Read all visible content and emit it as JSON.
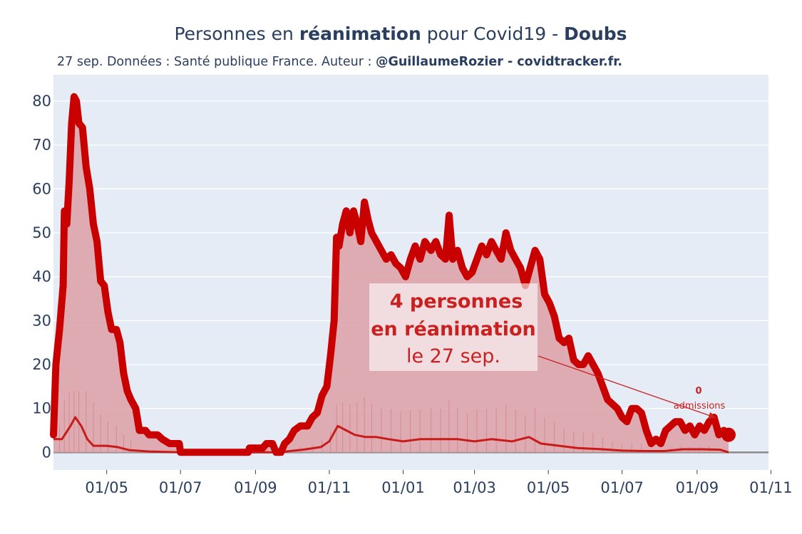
{
  "title": {
    "prefix": "Personnes en ",
    "bold": "réanimation",
    "middle": " pour Covid19 - ",
    "region": "Doubs"
  },
  "subtitle": {
    "text": "27 sep. Données : Santé publique France. Auteur : ",
    "bold": "@GuillaumeRozier - covidtracker.fr."
  },
  "annotation": {
    "line1": "4 personnes",
    "line2": "en réanimation",
    "line3": "le 27 sep."
  },
  "admissions_annotation": {
    "value": "0",
    "label": "admissions"
  },
  "colors": {
    "icu_line": "#c90000",
    "icu_fill": "#dba4aa",
    "admissions_line": "#c91a1a",
    "plot_bg": "#e5ecf6",
    "grid": "#ffffff",
    "text": "#2a3f5f",
    "annotation_text": "#c92020"
  },
  "chart_data": {
    "type": "area",
    "title": "Personnes en réanimation pour Covid19 - Doubs",
    "x_axis": {
      "ticks": [
        "01/05",
        "01/07",
        "01/09",
        "01/11",
        "01/01",
        "01/03",
        "01/05",
        "01/07",
        "01/09",
        "01/11"
      ],
      "tick_dates": [
        "2020-05-01",
        "2020-07-01",
        "2020-09-01",
        "2020-11-01",
        "2021-01-01",
        "2021-03-01",
        "2021-05-01",
        "2021-07-01",
        "2021-09-01",
        "2021-11-01"
      ],
      "range": [
        "2020-03-18",
        "2021-10-30"
      ]
    },
    "y_axis": {
      "ticks": [
        0,
        10,
        20,
        30,
        40,
        50,
        60,
        70,
        80
      ],
      "range": [
        -4,
        86
      ]
    },
    "grid": true,
    "series": [
      {
        "name": "",
        "style": "thick-line-with-fill",
        "points": [
          [
            "2020-03-18",
            4
          ],
          [
            "2020-03-20",
            20
          ],
          [
            "2020-03-23",
            28
          ],
          [
            "2020-03-26",
            38
          ],
          [
            "2020-03-27",
            55
          ],
          [
            "2020-03-29",
            52
          ],
          [
            "2020-03-31",
            62
          ],
          [
            "2020-04-02",
            75
          ],
          [
            "2020-04-04",
            81
          ],
          [
            "2020-04-06",
            80
          ],
          [
            "2020-04-08",
            75
          ],
          [
            "2020-04-11",
            74
          ],
          [
            "2020-04-14",
            65
          ],
          [
            "2020-04-17",
            60
          ],
          [
            "2020-04-20",
            52
          ],
          [
            "2020-04-23",
            48
          ],
          [
            "2020-04-26",
            39
          ],
          [
            "2020-04-29",
            38
          ],
          [
            "2020-05-02",
            32
          ],
          [
            "2020-05-05",
            28
          ],
          [
            "2020-05-09",
            28
          ],
          [
            "2020-05-12",
            25
          ],
          [
            "2020-05-15",
            18
          ],
          [
            "2020-05-18",
            14
          ],
          [
            "2020-05-21",
            12
          ],
          [
            "2020-05-25",
            10
          ],
          [
            "2020-05-28",
            5
          ],
          [
            "2020-06-02",
            5
          ],
          [
            "2020-06-05",
            4
          ],
          [
            "2020-06-12",
            4
          ],
          [
            "2020-06-16",
            3
          ],
          [
            "2020-06-22",
            2
          ],
          [
            "2020-06-30",
            2
          ],
          [
            "2020-07-01",
            0
          ],
          [
            "2020-08-26",
            0
          ],
          [
            "2020-08-27",
            1
          ],
          [
            "2020-09-07",
            1
          ],
          [
            "2020-09-10",
            2
          ],
          [
            "2020-09-15",
            2
          ],
          [
            "2020-09-18",
            0
          ],
          [
            "2020-09-22",
            0
          ],
          [
            "2020-09-25",
            2
          ],
          [
            "2020-09-29",
            3
          ],
          [
            "2020-10-03",
            5
          ],
          [
            "2020-10-08",
            6
          ],
          [
            "2020-10-14",
            6
          ],
          [
            "2020-10-18",
            8
          ],
          [
            "2020-10-22",
            9
          ],
          [
            "2020-10-26",
            13
          ],
          [
            "2020-10-30",
            15
          ],
          [
            "2020-11-02",
            22
          ],
          [
            "2020-11-05",
            30
          ],
          [
            "2020-11-07",
            49
          ],
          [
            "2020-11-09",
            47
          ],
          [
            "2020-11-12",
            52
          ],
          [
            "2020-11-15",
            55
          ],
          [
            "2020-11-18",
            50
          ],
          [
            "2020-11-21",
            55
          ],
          [
            "2020-11-24",
            52
          ],
          [
            "2020-11-27",
            48
          ],
          [
            "2020-11-30",
            57
          ],
          [
            "2020-12-03",
            53
          ],
          [
            "2020-12-06",
            50
          ],
          [
            "2020-12-10",
            48
          ],
          [
            "2020-12-14",
            46
          ],
          [
            "2020-12-18",
            44
          ],
          [
            "2020-12-22",
            45
          ],
          [
            "2020-12-26",
            43
          ],
          [
            "2020-12-30",
            42
          ],
          [
            "2021-01-03",
            40
          ],
          [
            "2021-01-07",
            44
          ],
          [
            "2021-01-11",
            47
          ],
          [
            "2021-01-15",
            44
          ],
          [
            "2021-01-19",
            48
          ],
          [
            "2021-01-24",
            46
          ],
          [
            "2021-01-28",
            48
          ],
          [
            "2021-02-01",
            45
          ],
          [
            "2021-02-05",
            44
          ],
          [
            "2021-02-08",
            54
          ],
          [
            "2021-02-11",
            44
          ],
          [
            "2021-02-15",
            46
          ],
          [
            "2021-02-19",
            42
          ],
          [
            "2021-02-23",
            40
          ],
          [
            "2021-02-27",
            41
          ],
          [
            "2021-03-03",
            44
          ],
          [
            "2021-03-07",
            47
          ],
          [
            "2021-03-11",
            45
          ],
          [
            "2021-03-15",
            48
          ],
          [
            "2021-03-19",
            46
          ],
          [
            "2021-03-23",
            44
          ],
          [
            "2021-03-27",
            50
          ],
          [
            "2021-03-31",
            46
          ],
          [
            "2021-04-04",
            44
          ],
          [
            "2021-04-08",
            42
          ],
          [
            "2021-04-12",
            38
          ],
          [
            "2021-04-16",
            42
          ],
          [
            "2021-04-20",
            46
          ],
          [
            "2021-04-24",
            44
          ],
          [
            "2021-04-28",
            36
          ],
          [
            "2021-05-02",
            34
          ],
          [
            "2021-05-06",
            31
          ],
          [
            "2021-05-10",
            26
          ],
          [
            "2021-05-14",
            25
          ],
          [
            "2021-05-18",
            26
          ],
          [
            "2021-05-22",
            21
          ],
          [
            "2021-05-26",
            20
          ],
          [
            "2021-05-30",
            20
          ],
          [
            "2021-06-03",
            22
          ],
          [
            "2021-06-07",
            20
          ],
          [
            "2021-06-11",
            18
          ],
          [
            "2021-06-15",
            15
          ],
          [
            "2021-06-19",
            12
          ],
          [
            "2021-06-23",
            11
          ],
          [
            "2021-06-27",
            10
          ],
          [
            "2021-07-01",
            8
          ],
          [
            "2021-07-05",
            7
          ],
          [
            "2021-07-09",
            10
          ],
          [
            "2021-07-13",
            10
          ],
          [
            "2021-07-17",
            9
          ],
          [
            "2021-07-21",
            5
          ],
          [
            "2021-07-25",
            2
          ],
          [
            "2021-07-29",
            3
          ],
          [
            "2021-08-02",
            2
          ],
          [
            "2021-08-06",
            5
          ],
          [
            "2021-08-10",
            6
          ],
          [
            "2021-08-14",
            7
          ],
          [
            "2021-08-18",
            7
          ],
          [
            "2021-08-22",
            5
          ],
          [
            "2021-08-26",
            6
          ],
          [
            "2021-08-30",
            4
          ],
          [
            "2021-09-03",
            6
          ],
          [
            "2021-09-07",
            5
          ],
          [
            "2021-09-11",
            7
          ],
          [
            "2021-09-15",
            8
          ],
          [
            "2021-09-19",
            4
          ],
          [
            "2021-09-23",
            5
          ],
          [
            "2021-09-27",
            4
          ]
        ]
      },
      {
        "name": "",
        "style": "thin-line",
        "points": [
          [
            "2020-03-18",
            3
          ],
          [
            "2020-03-25",
            3
          ],
          [
            "2020-04-01",
            6
          ],
          [
            "2020-04-05",
            8
          ],
          [
            "2020-04-10",
            6
          ],
          [
            "2020-04-15",
            3
          ],
          [
            "2020-04-20",
            1.5
          ],
          [
            "2020-05-01",
            1.5
          ],
          [
            "2020-05-10",
            1.2
          ],
          [
            "2020-05-20",
            0.5
          ],
          [
            "2020-06-05",
            0.2
          ],
          [
            "2020-07-01",
            0
          ],
          [
            "2020-09-20",
            0
          ],
          [
            "2020-10-10",
            0.6
          ],
          [
            "2020-10-25",
            1.2
          ],
          [
            "2020-11-01",
            2.5
          ],
          [
            "2020-11-08",
            6
          ],
          [
            "2020-11-15",
            5
          ],
          [
            "2020-11-22",
            4
          ],
          [
            "2020-12-01",
            3.5
          ],
          [
            "2020-12-10",
            3.5
          ],
          [
            "2020-12-20",
            3
          ],
          [
            "2021-01-01",
            2.5
          ],
          [
            "2021-01-15",
            3
          ],
          [
            "2021-02-01",
            3
          ],
          [
            "2021-02-15",
            3
          ],
          [
            "2021-03-01",
            2.5
          ],
          [
            "2021-03-15",
            3
          ],
          [
            "2021-04-01",
            2.5
          ],
          [
            "2021-04-15",
            3.5
          ],
          [
            "2021-04-25",
            2
          ],
          [
            "2021-05-10",
            1.5
          ],
          [
            "2021-05-25",
            1
          ],
          [
            "2021-06-15",
            0.7
          ],
          [
            "2021-07-01",
            0.4
          ],
          [
            "2021-07-20",
            0.3
          ],
          [
            "2021-08-05",
            0.3
          ],
          [
            "2021-08-20",
            0.7
          ],
          [
            "2021-09-05",
            0.7
          ],
          [
            "2021-09-20",
            0.6
          ],
          [
            "2021-09-27",
            0
          ]
        ]
      }
    ],
    "last_point": [
      "2021-09-27",
      4
    ]
  }
}
